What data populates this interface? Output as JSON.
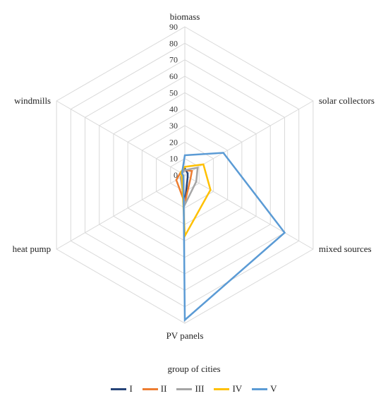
{
  "chart_data": {
    "type": "radar",
    "axes": [
      "biomass",
      "solar collectors",
      "mixed sources",
      "PV panels",
      "heat pump",
      "windmills"
    ],
    "ticks": [
      0,
      10,
      20,
      30,
      40,
      50,
      60,
      70,
      80,
      90
    ],
    "rlim": [
      0,
      90
    ],
    "grid": true,
    "legend_title": "group of cities",
    "legend_position": "bottom",
    "series": [
      {
        "name": "I",
        "color": "#264478",
        "values": [
          4,
          2,
          2,
          18,
          2,
          2
        ]
      },
      {
        "name": "II",
        "color": "#ed7d31",
        "values": [
          3,
          5,
          4,
          17,
          6,
          3
        ]
      },
      {
        "name": "III",
        "color": "#a5a5a5",
        "values": [
          3,
          9,
          8,
          18,
          3,
          2
        ]
      },
      {
        "name": "IV",
        "color": "#ffc000",
        "values": [
          5,
          13,
          18,
          37,
          2,
          3
        ]
      },
      {
        "name": "V",
        "color": "#5b9bd5",
        "values": [
          12,
          27,
          70,
          88,
          1,
          2
        ]
      }
    ]
  }
}
